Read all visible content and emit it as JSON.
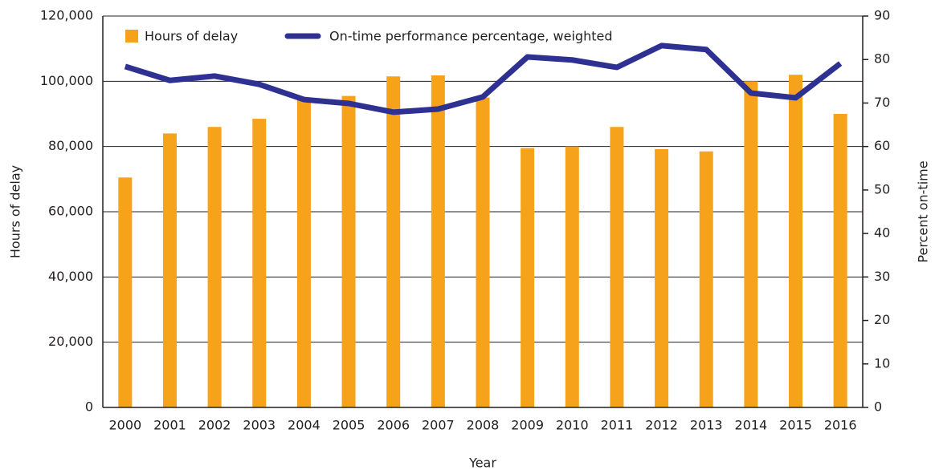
{
  "chart_data": {
    "type": "bar_line",
    "categories": [
      "2000",
      "2001",
      "2002",
      "2003",
      "2004",
      "2005",
      "2006",
      "2007",
      "2008",
      "2009",
      "2010",
      "2011",
      "2012",
      "2013",
      "2014",
      "2015",
      "2016"
    ],
    "series": [
      {
        "name": "Hours of delay",
        "type": "bar",
        "color": "#f7a21b",
        "values": [
          70500,
          84000,
          86000,
          88500,
          95000,
          95500,
          101500,
          101800,
          95000,
          79500,
          80000,
          86000,
          79200,
          78500,
          100000,
          102000,
          90000
        ]
      },
      {
        "name": "On-time performance percentage, weighted",
        "type": "line",
        "axis": "y2",
        "color": "#2e3192",
        "values": [
          78.4,
          75.2,
          76.2,
          74.3,
          70.8,
          69.9,
          67.9,
          68.6,
          71.4,
          80.6,
          79.9,
          78.2,
          83.2,
          82.3,
          72.3,
          71.2,
          79.1
        ]
      }
    ],
    "xlabel": "Year",
    "ylabel": "Hours of delay",
    "y2label": "Percent on-time",
    "ylim": [
      0,
      120000
    ],
    "yticks": [
      0,
      {
        "value": 20000,
        "label": "20,000"
      },
      {
        "value": 40000,
        "label": "40,000"
      },
      {
        "value": 60000,
        "label": "60,000"
      },
      {
        "value": 80000,
        "label": "80,000"
      },
      {
        "value": 100000,
        "label": "100,000"
      },
      {
        "value": 120000,
        "label": "120,000"
      }
    ],
    "y2lim": [
      0,
      90
    ],
    "y2ticks": [
      0,
      10,
      20,
      30,
      40,
      50,
      60,
      70,
      80,
      90
    ],
    "grid": true,
    "legend": "top"
  }
}
